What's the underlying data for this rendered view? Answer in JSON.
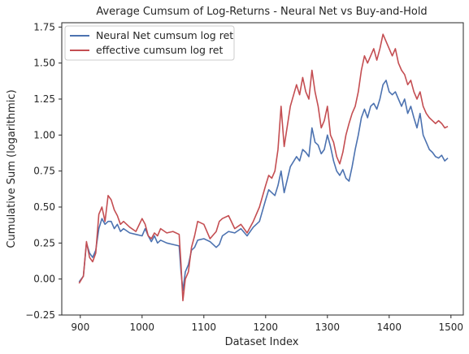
{
  "chart_data": {
    "type": "line",
    "title": "Average Cumsum of Log-Returns - Neural Net vs Buy-and-Hold",
    "xlabel": "Dataset Index",
    "ylabel": "Cumulative Sum (logarithmic)",
    "xlim": [
      870,
      1520
    ],
    "ylim": [
      -0.25,
      1.78
    ],
    "xticks": [
      900,
      1000,
      1100,
      1200,
      1300,
      1400,
      1500
    ],
    "yticks": [
      -0.25,
      0.0,
      0.25,
      0.5,
      0.75,
      1.0,
      1.25,
      1.5,
      1.75
    ],
    "ytick_labels": [
      "−0.25",
      "0.00",
      "0.25",
      "0.50",
      "0.75",
      "1.00",
      "1.25",
      "1.50",
      "1.75"
    ],
    "grid": false,
    "legend_position": "top-left",
    "series": [
      {
        "name": "Neural Net cumsum log ret",
        "color": "#4c72b0",
        "x": [
          898,
          905,
          910,
          915,
          920,
          925,
          930,
          935,
          940,
          945,
          950,
          955,
          960,
          965,
          970,
          980,
          990,
          1000,
          1005,
          1010,
          1015,
          1020,
          1025,
          1030,
          1040,
          1050,
          1060,
          1063,
          1066,
          1070,
          1075,
          1080,
          1085,
          1090,
          1100,
          1110,
          1120,
          1125,
          1130,
          1140,
          1150,
          1160,
          1170,
          1180,
          1190,
          1200,
          1205,
          1210,
          1215,
          1220,
          1225,
          1230,
          1240,
          1250,
          1255,
          1260,
          1265,
          1270,
          1275,
          1280,
          1285,
          1290,
          1295,
          1300,
          1305,
          1310,
          1315,
          1320,
          1325,
          1330,
          1335,
          1340,
          1345,
          1350,
          1355,
          1360,
          1365,
          1370,
          1375,
          1380,
          1385,
          1390,
          1395,
          1400,
          1405,
          1410,
          1415,
          1420,
          1425,
          1430,
          1435,
          1440,
          1445,
          1450,
          1455,
          1460,
          1465,
          1470,
          1475,
          1480,
          1485,
          1490,
          1495
        ],
        "values": [
          -0.02,
          0.02,
          0.25,
          0.18,
          0.15,
          0.2,
          0.35,
          0.42,
          0.38,
          0.4,
          0.4,
          0.35,
          0.38,
          0.33,
          0.35,
          0.32,
          0.31,
          0.3,
          0.35,
          0.3,
          0.26,
          0.3,
          0.25,
          0.27,
          0.25,
          0.24,
          0.23,
          0.05,
          -0.08,
          0.05,
          0.1,
          0.2,
          0.22,
          0.27,
          0.28,
          0.26,
          0.22,
          0.24,
          0.3,
          0.33,
          0.32,
          0.35,
          0.3,
          0.36,
          0.4,
          0.55,
          0.62,
          0.6,
          0.58,
          0.65,
          0.75,
          0.6,
          0.78,
          0.85,
          0.82,
          0.9,
          0.88,
          0.85,
          1.05,
          0.95,
          0.93,
          0.87,
          0.9,
          1.0,
          0.92,
          0.82,
          0.75,
          0.72,
          0.76,
          0.7,
          0.68,
          0.78,
          0.9,
          1.0,
          1.12,
          1.18,
          1.12,
          1.2,
          1.22,
          1.18,
          1.25,
          1.35,
          1.38,
          1.3,
          1.28,
          1.3,
          1.25,
          1.2,
          1.25,
          1.15,
          1.2,
          1.12,
          1.05,
          1.15,
          1.0,
          0.95,
          0.9,
          0.88,
          0.85,
          0.84,
          0.86,
          0.82,
          0.84
        ]
      },
      {
        "name": "effective cumsum log ret",
        "color": "#c44e52",
        "x": [
          898,
          905,
          910,
          915,
          920,
          925,
          930,
          935,
          940,
          945,
          950,
          955,
          960,
          965,
          970,
          980,
          990,
          1000,
          1005,
          1010,
          1015,
          1020,
          1025,
          1030,
          1040,
          1050,
          1060,
          1063,
          1066,
          1070,
          1075,
          1080,
          1085,
          1090,
          1100,
          1110,
          1120,
          1125,
          1130,
          1140,
          1150,
          1160,
          1170,
          1180,
          1190,
          1200,
          1205,
          1210,
          1215,
          1220,
          1225,
          1230,
          1240,
          1250,
          1255,
          1260,
          1265,
          1270,
          1275,
          1280,
          1285,
          1290,
          1295,
          1300,
          1305,
          1310,
          1315,
          1320,
          1325,
          1330,
          1335,
          1340,
          1345,
          1350,
          1355,
          1360,
          1365,
          1370,
          1375,
          1380,
          1385,
          1390,
          1395,
          1400,
          1405,
          1410,
          1415,
          1420,
          1425,
          1430,
          1435,
          1440,
          1445,
          1450,
          1455,
          1460,
          1465,
          1470,
          1475,
          1480,
          1485,
          1490,
          1495
        ],
        "values": [
          -0.03,
          0.02,
          0.26,
          0.15,
          0.12,
          0.18,
          0.45,
          0.5,
          0.4,
          0.58,
          0.55,
          0.48,
          0.44,
          0.38,
          0.4,
          0.36,
          0.33,
          0.42,
          0.38,
          0.3,
          0.28,
          0.32,
          0.3,
          0.35,
          0.32,
          0.33,
          0.31,
          0.1,
          -0.15,
          0.0,
          0.05,
          0.22,
          0.3,
          0.4,
          0.38,
          0.28,
          0.33,
          0.4,
          0.42,
          0.44,
          0.35,
          0.38,
          0.32,
          0.4,
          0.5,
          0.65,
          0.72,
          0.7,
          0.75,
          0.9,
          1.2,
          0.92,
          1.2,
          1.35,
          1.28,
          1.4,
          1.3,
          1.25,
          1.45,
          1.3,
          1.2,
          1.05,
          1.1,
          1.2,
          1.0,
          0.95,
          0.85,
          0.8,
          0.88,
          1.0,
          1.08,
          1.15,
          1.2,
          1.3,
          1.45,
          1.55,
          1.5,
          1.55,
          1.6,
          1.52,
          1.6,
          1.7,
          1.65,
          1.6,
          1.55,
          1.6,
          1.5,
          1.45,
          1.42,
          1.35,
          1.38,
          1.3,
          1.25,
          1.3,
          1.2,
          1.15,
          1.12,
          1.1,
          1.08,
          1.1,
          1.08,
          1.05,
          1.06
        ]
      }
    ]
  }
}
